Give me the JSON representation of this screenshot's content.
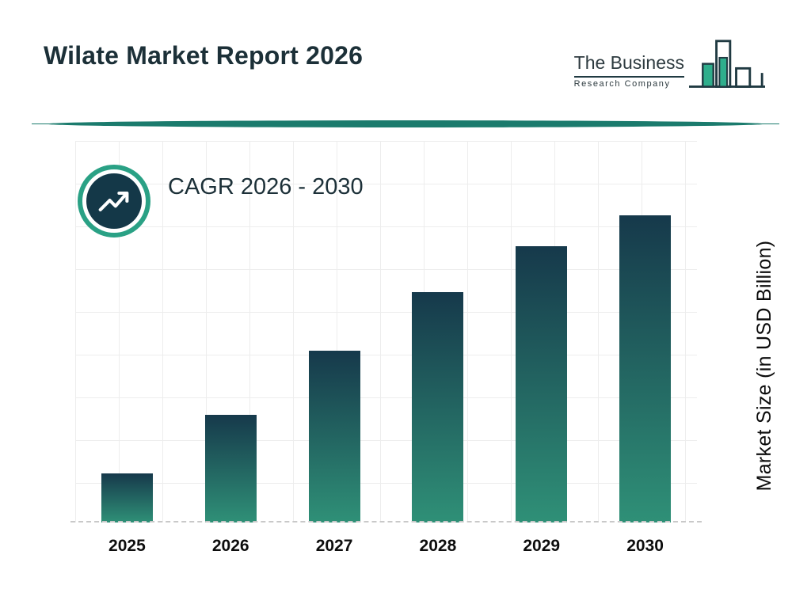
{
  "header": {
    "title": "Wilate Market Report 2026",
    "logo": {
      "line1": "The Business",
      "line2": "Research Company"
    }
  },
  "cagr_label": "CAGR 2026 - 2030",
  "chart_data": {
    "type": "bar",
    "title": "Wilate Market Report 2026",
    "categories": [
      "2025",
      "2026",
      "2027",
      "2028",
      "2029",
      "2030"
    ],
    "values": [
      16,
      35,
      56,
      75,
      90,
      100
    ],
    "values_note": "No numeric axis shown; values are relative bar heights (max bar = 100)",
    "xlabel": "",
    "ylabel": "Market Size (in USD Billion)",
    "ylim": [
      0,
      100
    ],
    "grid": true,
    "legend": false,
    "bar_gradient_top": "#16394b",
    "bar_gradient_bottom": "#2f9077"
  },
  "icons": {
    "cagr_badge": "trending-up-icon",
    "logo_icon": "bar-chart-skyline-icon"
  },
  "colors": {
    "accent_teal": "#1b7b6d",
    "ring_teal": "#2aa185",
    "dark_navy": "#143848",
    "title_text": "#1c3038",
    "grid_line": "#ededed",
    "baseline_dash": "#c9c9c9"
  }
}
